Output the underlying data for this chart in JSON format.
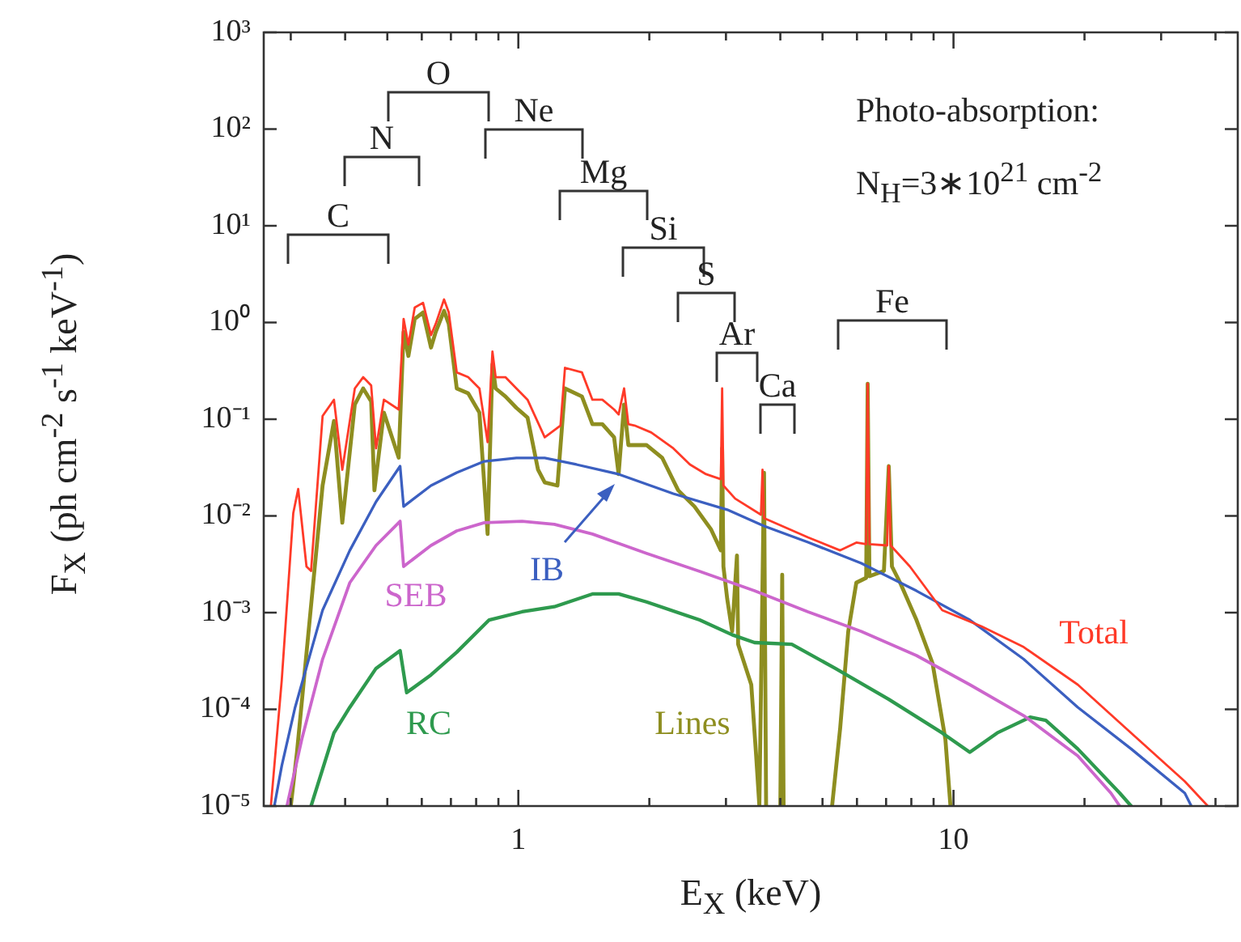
{
  "chart_data": {
    "type": "line",
    "xlabel": "E$_{X}$ (keV)",
    "ylabel": "F$_{X}$ (ph cm$^{-2}$ s$^{-1}$ keV$^{-1}$)",
    "log": "xy",
    "marker": "none",
    "line_style": "solid",
    "xlim": [
      0.26,
      45
    ],
    "ylim": [
      1e-05,
      1000
    ],
    "xticks": [
      {
        "value": 0.3,
        "label": null
      },
      {
        "value": 0.4,
        "label": null
      },
      {
        "value": 0.5,
        "label": null
      },
      {
        "value": 0.6,
        "label": null
      },
      {
        "value": 0.7,
        "label": null
      },
      {
        "value": 0.8,
        "label": null
      },
      {
        "value": 0.9,
        "label": null
      },
      1,
      {
        "value": 2,
        "label": null
      },
      {
        "value": 3,
        "label": null
      },
      {
        "value": 4,
        "label": null
      },
      {
        "value": 5,
        "label": null
      },
      {
        "value": 6,
        "label": null
      },
      {
        "value": 7,
        "label": null
      },
      {
        "value": 8,
        "label": null
      },
      {
        "value": 9,
        "label": null
      },
      10,
      {
        "value": 20,
        "label": null
      },
      {
        "value": 30,
        "label": null
      },
      {
        "value": 40,
        "label": null
      }
    ],
    "yticks": [
      {
        "value": 1e-05,
        "label": "10⁻⁵"
      },
      {
        "value": 0.0001,
        "label": "10⁻⁴"
      },
      {
        "value": 0.001,
        "label": "10⁻³"
      },
      {
        "value": 0.01,
        "label": "10⁻²"
      },
      {
        "value": 0.1,
        "label": "10⁻¹"
      },
      {
        "value": 1,
        "label": "10⁰"
      },
      {
        "value": 10,
        "label": "10¹"
      },
      {
        "value": 100,
        "label": "10²"
      },
      {
        "value": 1000,
        "label": "10³"
      }
    ],
    "annotations": [
      "Photo-absorption:",
      "N$_{H}$=3∗10$^{21}$ cm$^{-2}$",
      "C",
      "N",
      "O",
      "Ne",
      "Mg",
      "Si",
      "S",
      "Ar",
      "Ca",
      "Fe"
    ],
    "series": [
      {
        "name": "Total",
        "color": "#ff3a28",
        "x": [
          0.27,
          0.286,
          0.304,
          0.312,
          0.326,
          0.334,
          0.355,
          0.377,
          0.394,
          0.421,
          0.44,
          0.459,
          0.471,
          0.491,
          0.531,
          0.545,
          0.559,
          0.578,
          0.604,
          0.63,
          0.646,
          0.675,
          0.692,
          0.722,
          0.767,
          0.814,
          0.85,
          0.872,
          0.887,
          0.934,
          0.99,
          1.05,
          1.15,
          1.25,
          1.28,
          1.4,
          1.48,
          1.56,
          1.66,
          1.7,
          1.75,
          1.79,
          1.85,
          2.02,
          2.27,
          2.48,
          2.7,
          2.92,
          2.94,
          2.96,
          3.15,
          3.61,
          3.64,
          3.67,
          4.63,
          5.49,
          5.98,
          6.3,
          6.35,
          6.41,
          7.04,
          7.1,
          7.17,
          7.94,
          9.42,
          11.6,
          14.5,
          19.3,
          25.6,
          34,
          38.4
        ],
        "values": [
          1e-05,
          0.0002,
          0.0107,
          0.019,
          0.003,
          0.0027,
          0.108,
          0.159,
          0.03,
          0.208,
          0.272,
          0.224,
          0.05,
          0.159,
          0.126,
          1.09,
          0.59,
          1.43,
          1.6,
          0.74,
          0.97,
          1.73,
          1.27,
          0.305,
          0.272,
          0.208,
          0.058,
          0.5,
          0.272,
          0.272,
          0.208,
          0.159,
          0.065,
          0.086,
          0.34,
          0.305,
          0.159,
          0.159,
          0.126,
          0.112,
          0.208,
          0.089,
          0.086,
          0.073,
          0.05,
          0.034,
          0.027,
          0.024,
          0.208,
          0.0206,
          0.0151,
          0.0103,
          0.03,
          0.0095,
          0.006,
          0.0044,
          0.0053,
          0.0051,
          0.233,
          0.0051,
          0.00495,
          0.0327,
          0.00495,
          0.003,
          0.00106,
          0.00072,
          0.00044,
          0.00018,
          5.7e-05,
          1.8e-05,
          1e-05
        ]
      },
      {
        "name": "IB",
        "color": "#3b5fc0",
        "x": [
          0.275,
          0.286,
          0.307,
          0.355,
          0.41,
          0.471,
          0.535,
          0.545,
          0.63,
          0.722,
          0.835,
          0.99,
          1.15,
          1.36,
          1.7,
          2.27,
          3.02,
          3.67,
          4.63,
          6.14,
          8.22,
          10.9,
          14.5,
          19.3,
          25.6,
          34,
          35.2
        ],
        "values": [
          1e-05,
          2.6e-05,
          0.000105,
          0.00106,
          0.0044,
          0.014,
          0.0327,
          0.0125,
          0.0206,
          0.028,
          0.0367,
          0.0397,
          0.0397,
          0.034,
          0.027,
          0.017,
          0.0116,
          0.00786,
          0.00534,
          0.00324,
          0.00168,
          0.00084,
          0.00033,
          0.000105,
          3.9e-05,
          1.36e-05,
          1e-05
        ]
      },
      {
        "name": "SEB",
        "color": "#cc66cc",
        "x": [
          0.294,
          0.318,
          0.355,
          0.41,
          0.471,
          0.535,
          0.545,
          0.63,
          0.722,
          0.835,
          1.02,
          1.21,
          1.48,
          1.97,
          2.61,
          3.49,
          4.63,
          6.14,
          8.22,
          10.9,
          14.5,
          19.3,
          23,
          24.1
        ],
        "values": [
          1e-05,
          4.9e-05,
          0.00033,
          0.00204,
          0.00495,
          0.0088,
          0.003,
          0.00495,
          0.007,
          0.0085,
          0.0088,
          0.0082,
          0.0065,
          0.0041,
          0.00267,
          0.00168,
          0.00102,
          0.00064,
          0.00036,
          0.00018,
          8.6e-05,
          3.3e-05,
          1.36e-05,
          1e-05
        ]
      },
      {
        "name": "RC",
        "color": "#2e9a4e",
        "x": [
          0.334,
          0.377,
          0.41,
          0.471,
          0.535,
          0.554,
          0.63,
          0.722,
          0.857,
          1.02,
          1.21,
          1.48,
          1.7,
          1.97,
          2.61,
          3.1,
          3.49,
          4.25,
          5.35,
          7.1,
          9.42,
          10.9,
          12.6,
          15,
          16.3,
          19.3,
          24.1,
          25.6
        ],
        "values": [
          1e-05,
          5.7e-05,
          0.000105,
          0.000265,
          0.000405,
          0.000149,
          0.000227,
          0.00039,
          0.00084,
          0.00102,
          0.00115,
          0.00156,
          0.00156,
          0.00129,
          0.00084,
          0.00059,
          0.00049,
          0.00047,
          0.000265,
          0.000127,
          5.7e-05,
          3.6e-05,
          5.7e-05,
          8.3e-05,
          7.7e-05,
          3.9e-05,
          1.36e-05,
          1e-05
        ]
      },
      {
        "name": "Lines",
        "color": "#8e8e20",
        "x": [
          0.3,
          0.31,
          0.355,
          0.377,
          0.394,
          0.421,
          0.44,
          0.459,
          0.467,
          0.491,
          0.531,
          0.545,
          0.559,
          0.578,
          0.604,
          0.63,
          0.646,
          0.675,
          0.692,
          0.722,
          0.767,
          0.814,
          0.85,
          0.872,
          0.887,
          0.934,
          0.99,
          1.05,
          1.11,
          1.15,
          1.23,
          1.28,
          1.4,
          1.48,
          1.56,
          1.66,
          1.7,
          1.75,
          1.79,
          1.97,
          2.14,
          2.33,
          2.54,
          2.77,
          2.92,
          2.94,
          2.96,
          3.02,
          3.1,
          3.18,
          3.2,
          3.43,
          3.52,
          3.58,
          3.67,
          3.71,
          3.85,
          4,
          4.04,
          4.07,
          4.6,
          5.26,
          5.49,
          5.73,
          5.98,
          6.3,
          6.35,
          6.41,
          6.92,
          7.1,
          7.22,
          7.54,
          8.22,
          8.95,
          9.58,
          9.84
        ],
        "values": [
          1e-05,
          3.6e-05,
          0.0206,
          0.096,
          0.0085,
          0.142,
          0.208,
          0.153,
          0.0184,
          0.117,
          0.04,
          0.8,
          0.45,
          1.09,
          1.27,
          0.55,
          0.8,
          1.32,
          0.97,
          0.208,
          0.185,
          0.117,
          0.0065,
          0.37,
          0.208,
          0.172,
          0.131,
          0.104,
          0.03,
          0.0222,
          0.0206,
          0.208,
          0.172,
          0.089,
          0.089,
          0.065,
          0.027,
          0.142,
          0.054,
          0.054,
          0.04,
          0.0184,
          0.0125,
          0.0073,
          0.0044,
          0.05,
          0.003,
          0.00139,
          0.00064,
          0.0039,
          0.00047,
          0.00018,
          3.3e-05,
          1e-05,
          0.028,
          1e-05,
          null,
          1e-05,
          0.00247,
          1e-05,
          null,
          1e-05,
          6.4e-05,
          0.00064,
          0.00204,
          0.00229,
          0.233,
          0.00238,
          0.0027,
          0.0327,
          0.003,
          0.00204,
          0.00084,
          0.0003,
          4.9e-05,
          1e-05
        ]
      }
    ]
  }
}
